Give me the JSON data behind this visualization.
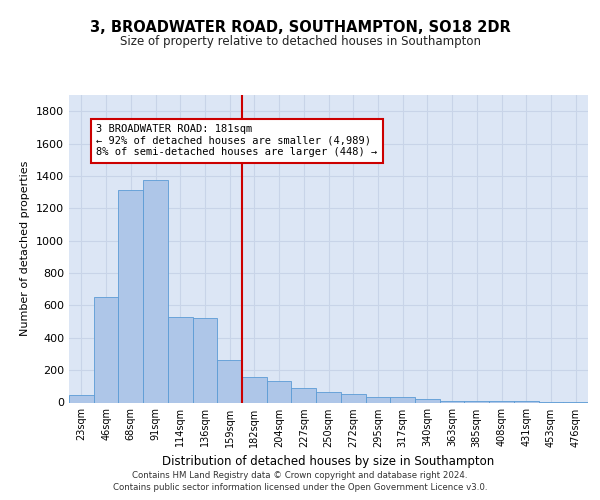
{
  "title": "3, BROADWATER ROAD, SOUTHAMPTON, SO18 2DR",
  "subtitle": "Size of property relative to detached houses in Southampton",
  "xlabel": "Distribution of detached houses by size in Southampton",
  "ylabel": "Number of detached properties",
  "categories": [
    "23sqm",
    "46sqm",
    "68sqm",
    "91sqm",
    "114sqm",
    "136sqm",
    "159sqm",
    "182sqm",
    "204sqm",
    "227sqm",
    "250sqm",
    "272sqm",
    "295sqm",
    "317sqm",
    "340sqm",
    "363sqm",
    "385sqm",
    "408sqm",
    "431sqm",
    "453sqm",
    "476sqm"
  ],
  "values": [
    45,
    650,
    1310,
    1375,
    530,
    520,
    265,
    155,
    130,
    90,
    65,
    55,
    35,
    35,
    20,
    10,
    10,
    10,
    10,
    5,
    5
  ],
  "bar_color": "#aec6e8",
  "bar_edge_color": "#5b9bd5",
  "red_line_x": 7,
  "annotation_text_line1": "3 BROADWATER ROAD: 181sqm",
  "annotation_text_line2": "← 92% of detached houses are smaller (4,989)",
  "annotation_text_line3": "8% of semi-detached houses are larger (448) →",
  "annotation_box_color": "#ffffff",
  "annotation_box_edge": "#cc0000",
  "red_line_color": "#cc0000",
  "grid_color": "#c8d4e8",
  "background_color": "#dce6f5",
  "ylim": [
    0,
    1900
  ],
  "yticks": [
    0,
    200,
    400,
    600,
    800,
    1000,
    1200,
    1400,
    1600,
    1800
  ],
  "footer_line1": "Contains HM Land Registry data © Crown copyright and database right 2024.",
  "footer_line2": "Contains public sector information licensed under the Open Government Licence v3.0.",
  "title_fontsize": 10.5,
  "subtitle_fontsize": 8.5
}
